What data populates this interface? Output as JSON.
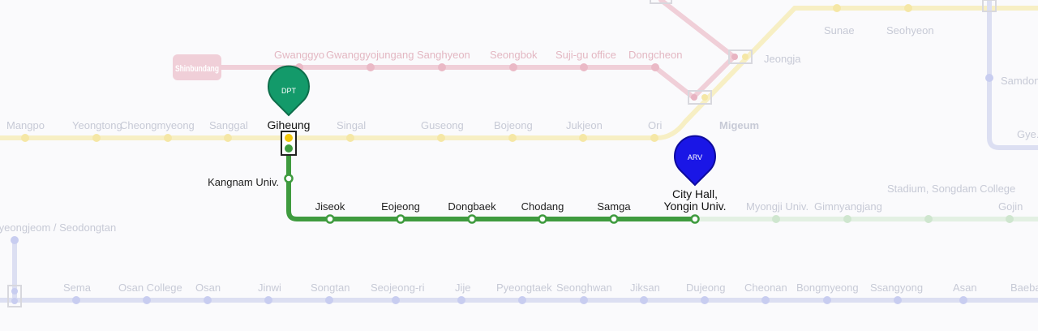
{
  "lines": {
    "shinbundang": {
      "color": "#f0cfd8",
      "badge_label": "Shinbundang",
      "stations": [
        "Gwanggyo",
        "Gwanggyojungang",
        "Sanghyeon",
        "Seongbok",
        "Suji-gu office",
        "Dongcheon"
      ]
    },
    "everline_faint": {
      "color": "#f7efc4",
      "stations": [
        "Mangpo",
        "Yeongtong",
        "Cheongmyeong",
        "Sanggal",
        "Singal",
        "Guseong",
        "Bojeong",
        "Jukjeon",
        "Ori",
        "Migeum",
        "Jeongja",
        "Sunae",
        "Seohyeon"
      ]
    },
    "yongin_faint": {
      "color": "#e3f0e3",
      "stations": [
        "Myongji Univ.",
        "Gimnyangjang",
        "Stadium, Songdam College",
        "Gojin"
      ]
    },
    "line1": {
      "color": "#dcdff2",
      "stations": [
        "Sema",
        "Osan College",
        "Osan",
        "Jinwi",
        "Songtan",
        "Seojeong-ri",
        "Jije",
        "Pyeongtaek",
        "Seonghwan",
        "Jiksan",
        "Dujeong",
        "Cheonan",
        "Bongmyeong",
        "Ssangyong",
        "Asan",
        "Baebang"
      ]
    },
    "line4_right": {
      "color": "#dcdff2",
      "stations": [
        "Samdong",
        "Gye..."
      ]
    },
    "left_vertical": {
      "color": "#dcdff2",
      "stations": [
        "Byeongjeom / Seodongtan"
      ]
    }
  },
  "route": {
    "color": "#3f9b3f",
    "departure": {
      "marker_label": "DPT",
      "station": "Giheung",
      "marker_color": "#139a6a"
    },
    "arrival": {
      "marker_label": "ARV",
      "station_line1": "City Hall,",
      "station_line2": "Yongin Univ.",
      "marker_color": "#1a16e6"
    },
    "stops": [
      "Kangnam Univ.",
      "Jiseok",
      "Eojeong",
      "Dongbaek",
      "Chodang",
      "Samga"
    ]
  }
}
